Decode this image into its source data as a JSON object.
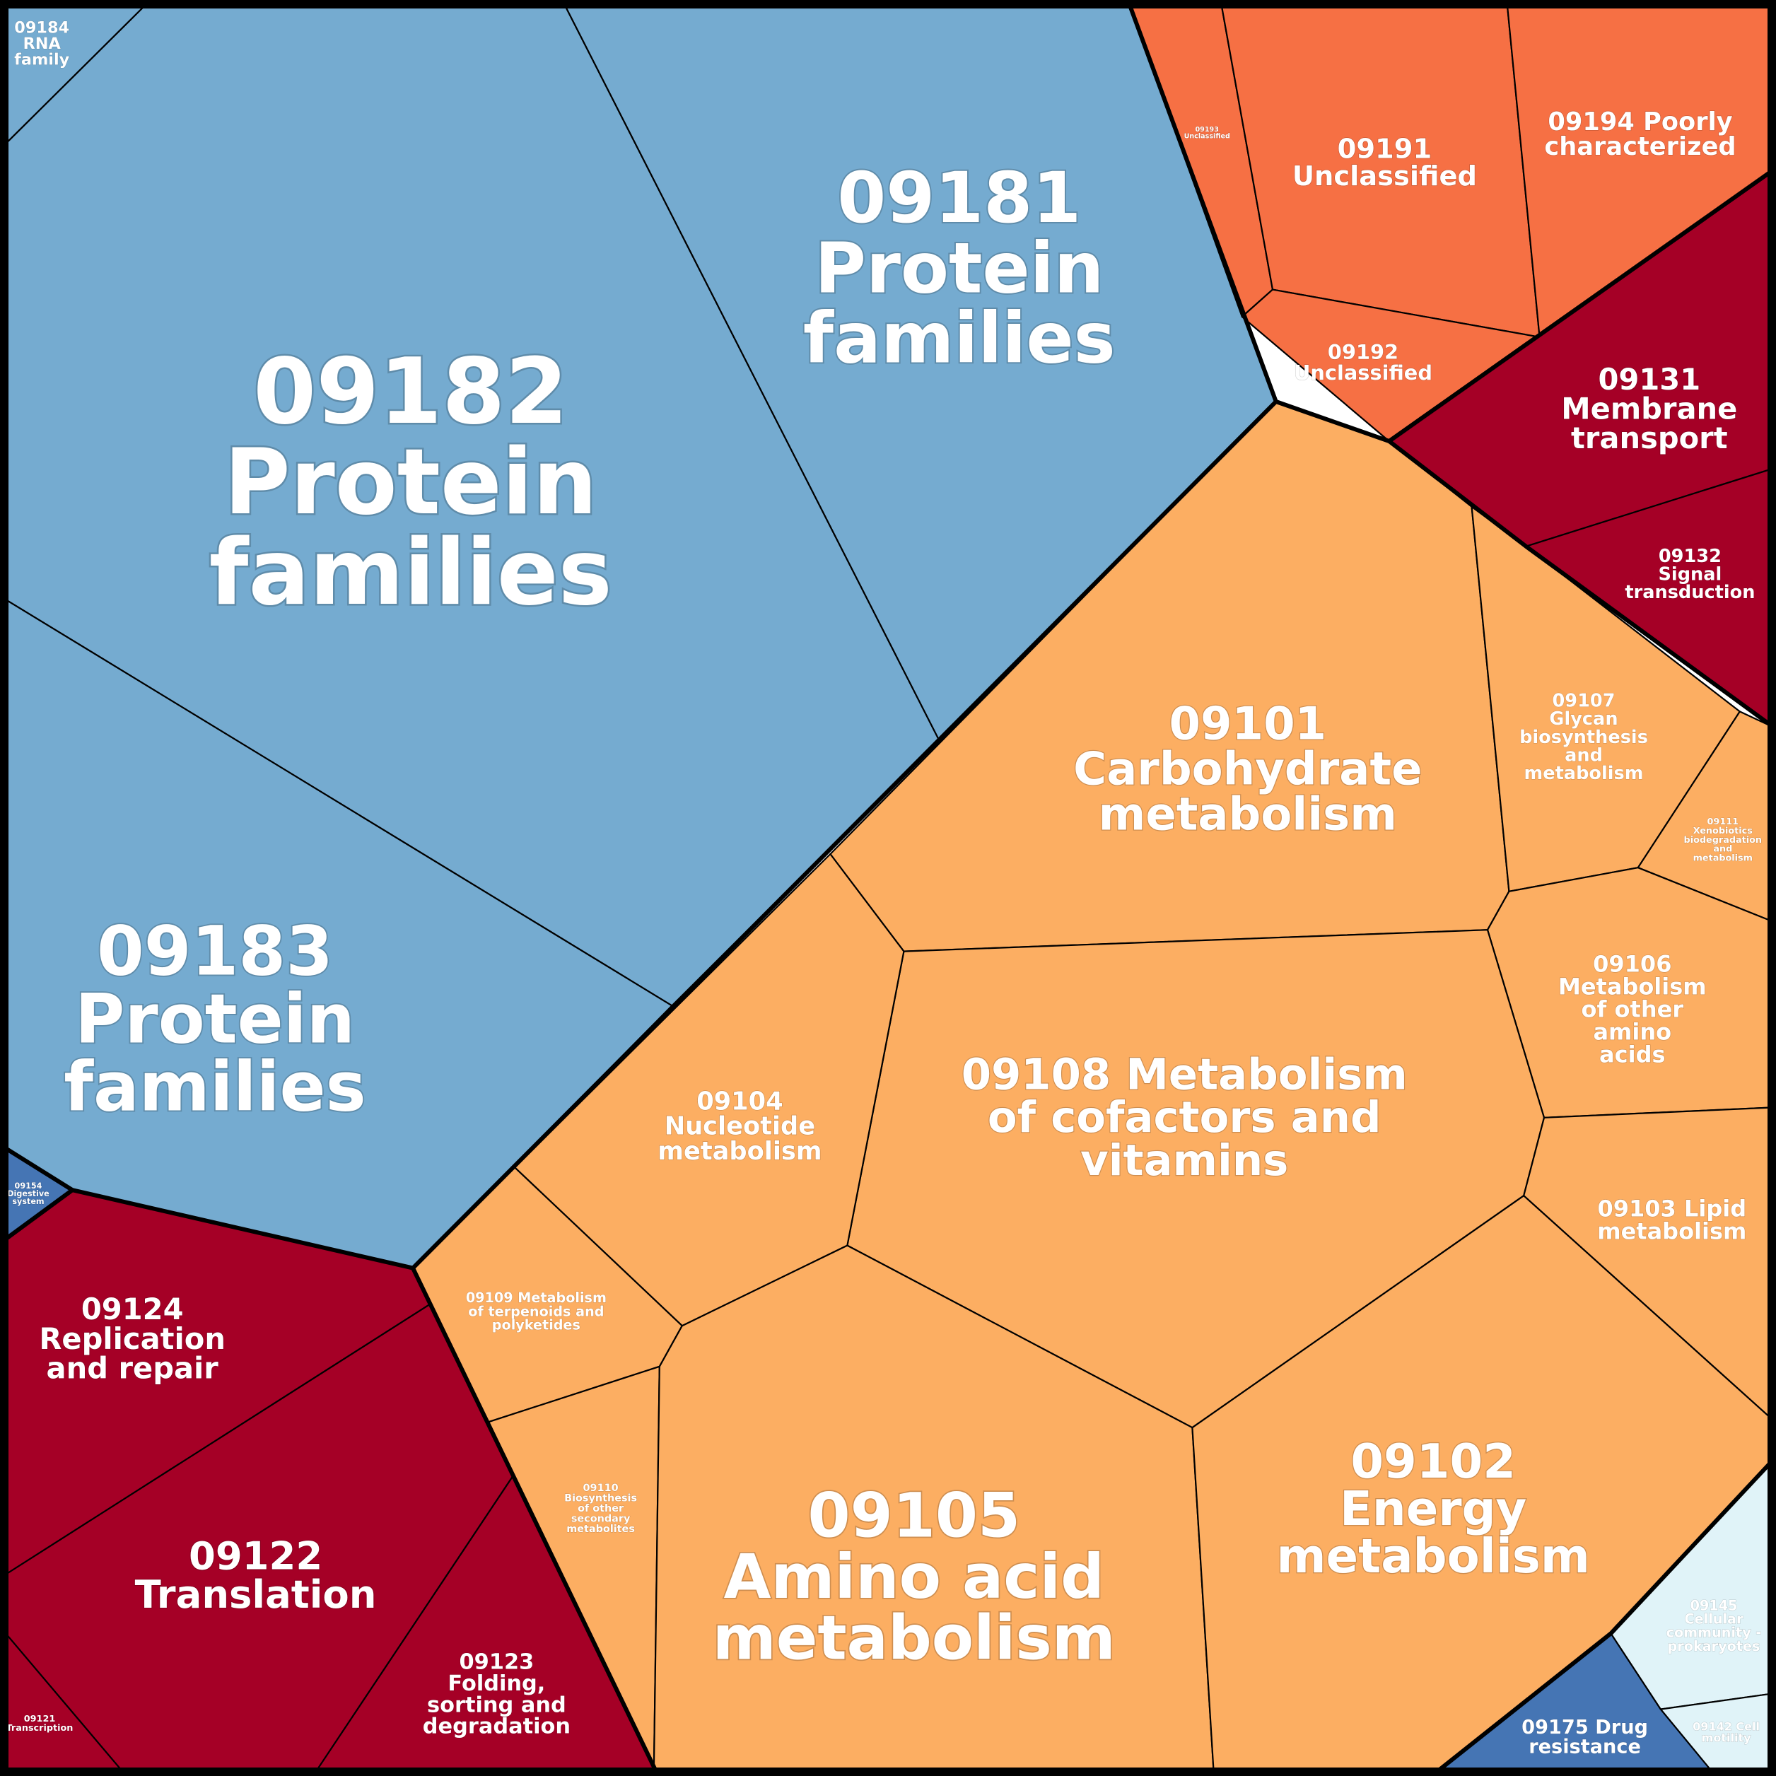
{
  "chart_data": {
    "type": "voronoi-treemap",
    "colors": {
      "09180 Brite Hierarchies": "#75abd0",
      "09190 Not Included in Pathway or Brite": "#f67044",
      "09130 Environmental Information Processing": "#a50026",
      "09120 Genetic Information Processing": "#a50026",
      "09100 Metabolism": "#fcae62",
      "09150 Organismal Systems": "#4575b4",
      "09140 Cellular Processes": "#e0f3f8",
      "09160 Human Diseases": "#4575b4"
    },
    "cells": [
      {
        "id": "09182",
        "group": "09180 Brite Hierarchies",
        "label": [
          "09182",
          "Protein",
          "families"
        ]
      },
      {
        "id": "09181",
        "group": "09180 Brite Hierarchies",
        "label": [
          "09181",
          "Protein",
          "families"
        ]
      },
      {
        "id": "09183",
        "group": "09180 Brite Hierarchies",
        "label": [
          "09183",
          "Protein",
          "families"
        ]
      },
      {
        "id": "09184",
        "group": "09180 Brite Hierarchies",
        "label": [
          "09184",
          "RNA",
          "family"
        ]
      },
      {
        "id": "09193",
        "group": "09190 Not Included in Pathway or Brite",
        "label": [
          "09193",
          "Unclassified"
        ]
      },
      {
        "id": "09191",
        "group": "09190 Not Included in Pathway or Brite",
        "label": [
          "09191",
          "Unclassified"
        ]
      },
      {
        "id": "09194",
        "group": "09190 Not Included in Pathway or Brite",
        "label": [
          "09194 Poorly",
          "characterized"
        ]
      },
      {
        "id": "09192",
        "group": "09190 Not Included in Pathway or Brite",
        "label": [
          "09192",
          "Unclassified"
        ]
      },
      {
        "id": "09131",
        "group": "09130 Environmental Information Processing",
        "label": [
          "09131",
          "Membrane",
          "transport"
        ]
      },
      {
        "id": "09132",
        "group": "09130 Environmental Information Processing",
        "label": [
          "09132",
          "Signal",
          "transduction"
        ]
      },
      {
        "id": "09101",
        "group": "09100 Metabolism",
        "label": [
          "09101",
          "Carbohydrate",
          "metabolism"
        ]
      },
      {
        "id": "09107",
        "group": "09100 Metabolism",
        "label": [
          "09107",
          "Glycan",
          "biosynthesis",
          "and",
          "metabolism"
        ]
      },
      {
        "id": "09111",
        "group": "09100 Metabolism",
        "label": [
          "09111",
          "Xenobiotics",
          "biodegradation",
          "and",
          "metabolism"
        ]
      },
      {
        "id": "09106",
        "group": "09100 Metabolism",
        "label": [
          "09106",
          "Metabolism",
          "of other",
          "amino",
          "acids"
        ]
      },
      {
        "id": "09108",
        "group": "09100 Metabolism",
        "label": [
          "09108 Metabolism",
          "of cofactors and",
          "vitamins"
        ]
      },
      {
        "id": "09104",
        "group": "09100 Metabolism",
        "label": [
          "09104",
          "Nucleotide",
          "metabolism"
        ]
      },
      {
        "id": "09103",
        "group": "09100 Metabolism",
        "label": [
          "09103 Lipid",
          "metabolism"
        ]
      },
      {
        "id": "09109",
        "group": "09100 Metabolism",
        "label": [
          "09109 Metabolism",
          "of terpenoids and",
          "polyketides"
        ]
      },
      {
        "id": "09110",
        "group": "09100 Metabolism",
        "label": [
          "09110",
          "Biosynthesis",
          "of other",
          "secondary",
          "metabolites"
        ]
      },
      {
        "id": "09105",
        "group": "09100 Metabolism",
        "label": [
          "09105",
          "Amino acid",
          "metabolism"
        ]
      },
      {
        "id": "09102",
        "group": "09100 Metabolism",
        "label": [
          "09102",
          "Energy",
          "metabolism"
        ]
      },
      {
        "id": "09154",
        "group": "09150 Organismal Systems",
        "label": [
          "09154",
          "Digestive",
          "system"
        ]
      },
      {
        "id": "09124",
        "group": "09120 Genetic Information Processing",
        "label": [
          "09124",
          "Replication",
          "and repair"
        ]
      },
      {
        "id": "09122",
        "group": "09120 Genetic Information Processing",
        "label": [
          "09122",
          "Translation"
        ]
      },
      {
        "id": "09123",
        "group": "09120 Genetic Information Processing",
        "label": [
          "09123",
          "Folding,",
          "sorting and",
          "degradation"
        ]
      },
      {
        "id": "09121",
        "group": "09120 Genetic Information Processing",
        "label": [
          "09121",
          "Transcription"
        ]
      },
      {
        "id": "09145",
        "group": "09140 Cellular Processes",
        "label": [
          "09145",
          "Cellular",
          "community -",
          "prokaryotes"
        ]
      },
      {
        "id": "09142",
        "group": "09140 Cellular Processes",
        "label": [
          "09142 Cell",
          "motility"
        ]
      },
      {
        "id": "09175",
        "group": "09160 Human Diseases",
        "label": [
          "09175 Drug",
          "resistance"
        ]
      }
    ]
  }
}
